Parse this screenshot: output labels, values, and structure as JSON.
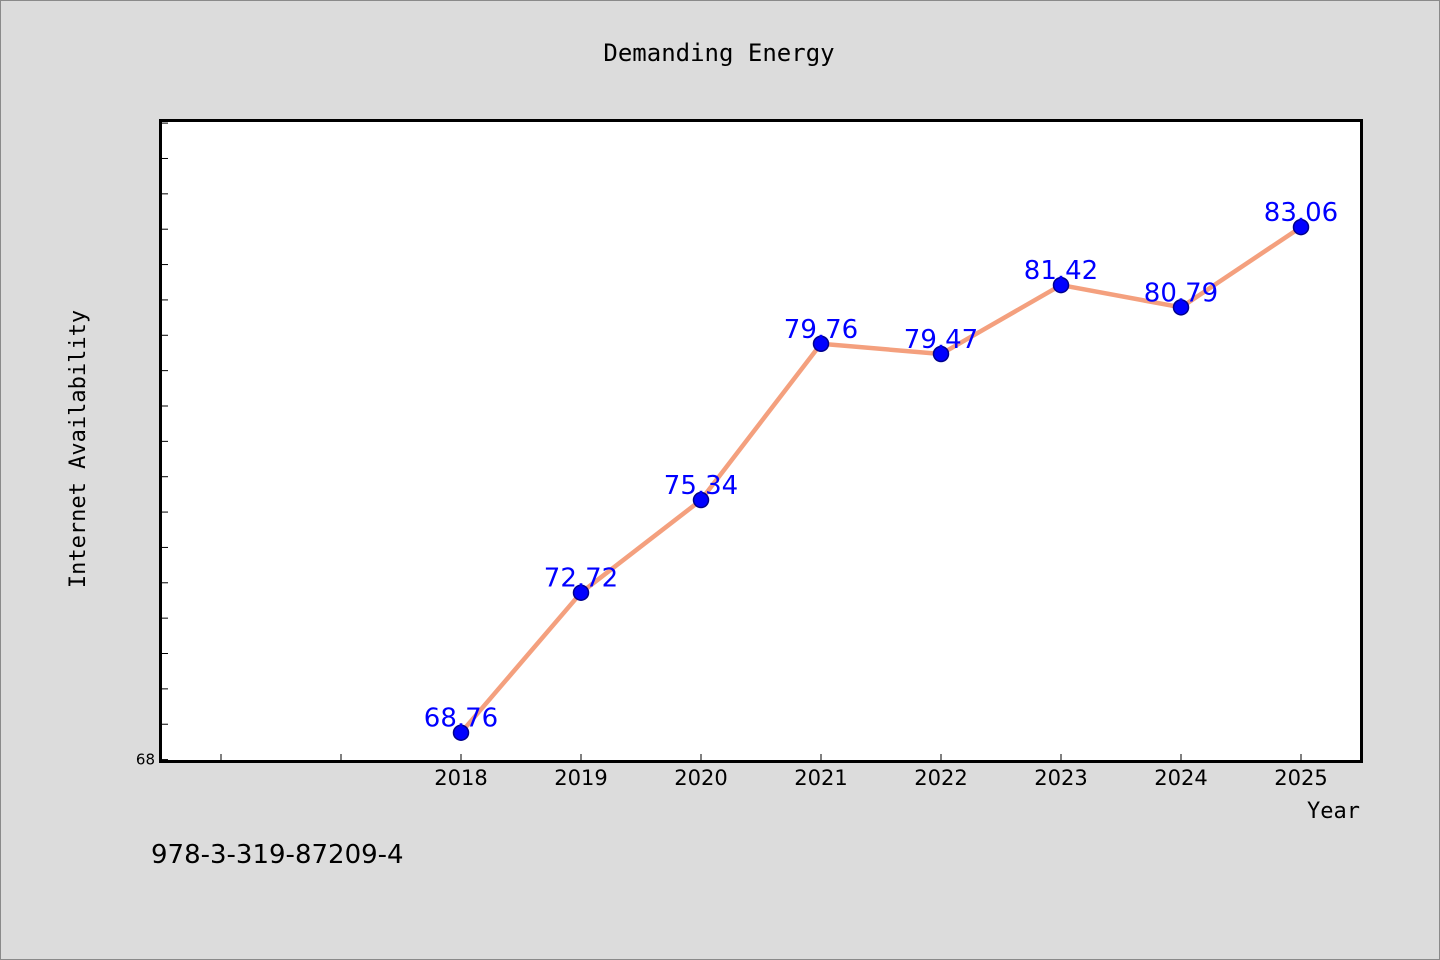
{
  "chart_data": {
    "type": "line",
    "title": "Demanding Energy",
    "xlabel": "Year",
    "ylabel": "Internet Availability",
    "categories": [
      "2018",
      "2019",
      "2020",
      "2021",
      "2022",
      "2023",
      "2024",
      "2025"
    ],
    "values": [
      68.76,
      72.72,
      75.34,
      79.76,
      79.47,
      81.42,
      80.79,
      83.06
    ],
    "value_labels": [
      "68.76",
      "72.72",
      "75.34",
      "79.76",
      "79.47",
      "81.42",
      "80.79",
      "83.06"
    ],
    "x_leading_empty_slots": 2,
    "y_tick_labels": [
      "68"
    ],
    "ylim": [
      67.96,
      86.06
    ],
    "y_minor_tick_step": 1,
    "grid": false,
    "legend": "none",
    "colors": {
      "line": "#f4a07e",
      "marker": "#0000ff",
      "marker_edge": "#00008b",
      "value_label": "#0000ff",
      "plot_background": "#ffffff",
      "figure_background": "#dcdcdc"
    }
  },
  "footer_code": "978-3-319-87209-4"
}
